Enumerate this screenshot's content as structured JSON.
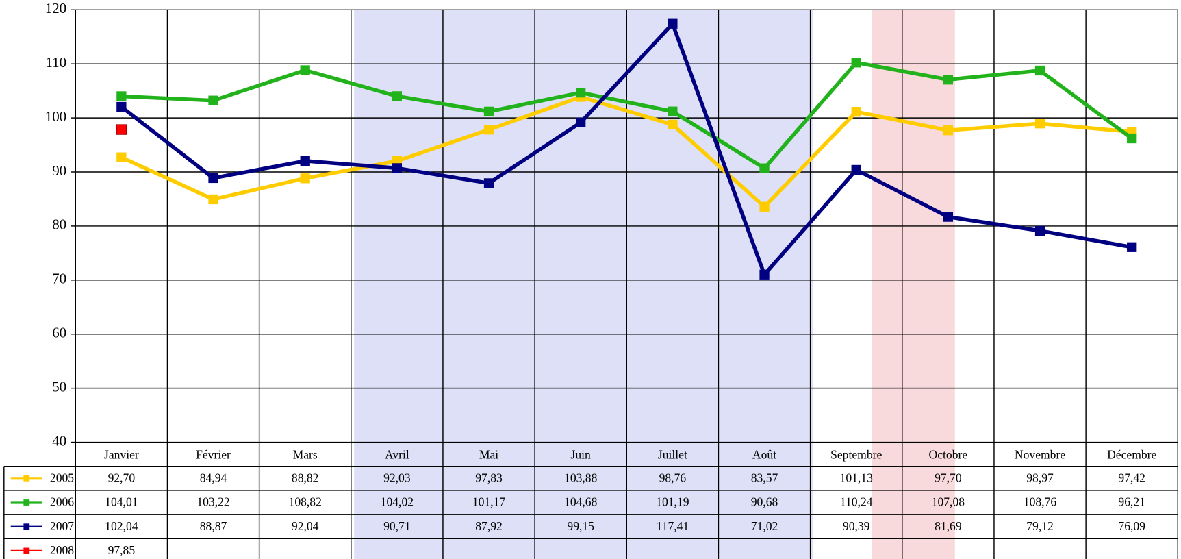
{
  "chart_data": {
    "type": "line",
    "categories": [
      "Janvier",
      "Février",
      "Mars",
      "Avril",
      "Mai",
      "Juin",
      "Juillet",
      "Août",
      "Septembre",
      "Octobre",
      "Novembre",
      "Décembre"
    ],
    "series": [
      {
        "name": "2005",
        "color": "#ffcc00",
        "values": [
          92.7,
          84.94,
          88.82,
          92.03,
          97.83,
          103.88,
          98.76,
          83.57,
          101.13,
          97.7,
          98.97,
          97.42
        ],
        "value_labels": [
          "92,70",
          "84,94",
          "88,82",
          "92,03",
          "97,83",
          "103,88",
          "98,76",
          "83,57",
          "101,13",
          "97,70",
          "98,97",
          "97,42"
        ]
      },
      {
        "name": "2006",
        "color": "#22b21c",
        "values": [
          104.01,
          103.22,
          108.82,
          104.02,
          101.17,
          104.68,
          101.19,
          90.68,
          110.24,
          107.08,
          108.76,
          96.21
        ],
        "value_labels": [
          "104,01",
          "103,22",
          "108,82",
          "104,02",
          "101,17",
          "104,68",
          "101,19",
          "90,68",
          "110,24",
          "107,08",
          "108,76",
          "96,21"
        ]
      },
      {
        "name": "2007",
        "color": "#000080",
        "values": [
          102.04,
          88.87,
          92.04,
          90.71,
          87.92,
          99.15,
          117.41,
          71.02,
          90.39,
          81.69,
          79.12,
          76.09
        ],
        "value_labels": [
          "102,04",
          "88,87",
          "92,04",
          "90,71",
          "87,92",
          "99,15",
          "117,41",
          "71,02",
          "90,39",
          "81,69",
          "79,12",
          "76,09"
        ]
      },
      {
        "name": "2008",
        "color": "#ff0000",
        "values": [
          97.85,
          null,
          null,
          null,
          null,
          null,
          null,
          null,
          null,
          null,
          null,
          null
        ],
        "value_labels": [
          "97,85",
          null,
          null,
          null,
          null,
          null,
          null,
          null,
          null,
          null,
          null,
          null
        ]
      }
    ],
    "ylim": [
      40,
      120
    ],
    "yticks": [
      40,
      50,
      60,
      70,
      80,
      90,
      100,
      110,
      120
    ],
    "grid": true
  }
}
